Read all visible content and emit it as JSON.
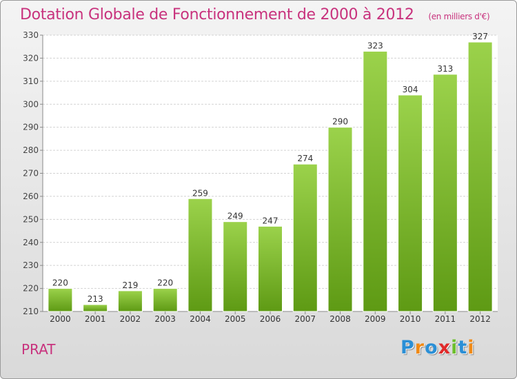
{
  "header": {
    "title": "Dotation Globale de Fonctionnement de 2000 à 2012",
    "unit": "(en milliers d'€)"
  },
  "footer": {
    "place": "PRAT",
    "brand": "Proxiti"
  },
  "colors": {
    "title": "#c8327d",
    "bar_top": "#9bd24b",
    "bar_bottom": "#5e9a14",
    "brand_letters": [
      "#2a8fd6",
      "#f08a16",
      "#2a8fd6",
      "#e02a2a",
      "#6cbf2c",
      "#2a8fd6",
      "#f08a16"
    ]
  },
  "chart_data": {
    "type": "bar",
    "title": "Dotation Globale de Fonctionnement de 2000 à 2012",
    "xlabel": "",
    "ylabel": "",
    "categories": [
      "2000",
      "2001",
      "2002",
      "2003",
      "2004",
      "2005",
      "2006",
      "2007",
      "2008",
      "2009",
      "2010",
      "2011",
      "2012"
    ],
    "values": [
      220,
      213,
      219,
      220,
      259,
      249,
      247,
      274,
      290,
      323,
      304,
      313,
      327
    ],
    "ylim": [
      210,
      330
    ],
    "yticks": [
      210,
      220,
      230,
      240,
      250,
      260,
      270,
      280,
      290,
      300,
      310,
      320,
      330
    ],
    "grid": true,
    "data_labels": true
  }
}
